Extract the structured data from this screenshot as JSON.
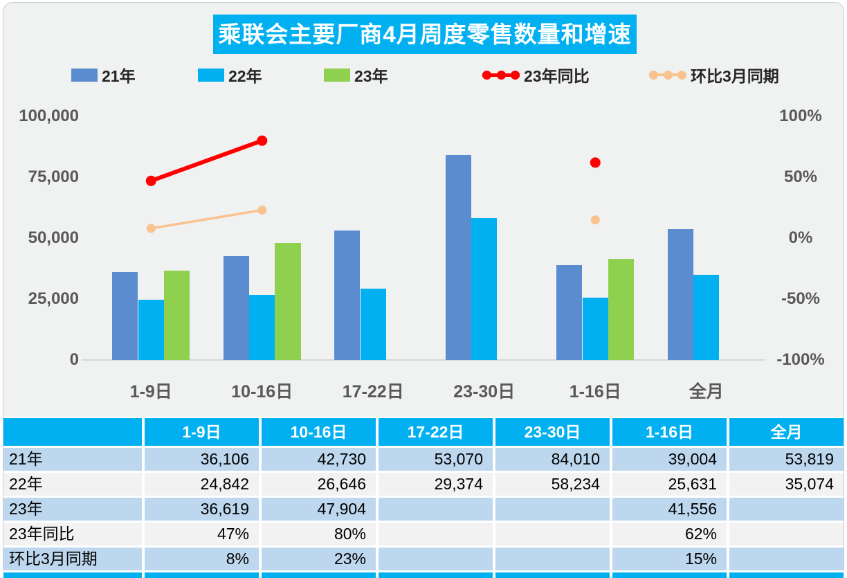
{
  "title": "乘联会主要厂商4月周度零售数量和增速",
  "colors": {
    "page_bg": "#F0F1F1",
    "card_border": "#CACDD1",
    "accent_cyan": "#00B0F0",
    "bar_blue": "#5B8CD0",
    "bar_cyan": "#00B0F0",
    "bar_green": "#8FD14F",
    "line_red": "#FF0000",
    "line_peach": "#F9C28F",
    "row_blue": "#BDD7EE",
    "row_plain": "#F2F2F2",
    "axis_text": "#595959",
    "separator": "#FFFFFF"
  },
  "legend": [
    {
      "label": "21年",
      "type": "bar",
      "color_key": "bar_blue"
    },
    {
      "label": "22年",
      "type": "bar",
      "color_key": "bar_cyan"
    },
    {
      "label": "23年",
      "type": "bar",
      "color_key": "bar_green"
    },
    {
      "label": "23年同比",
      "type": "line",
      "color_key": "line_red"
    },
    {
      "label": "环比3月同期",
      "type": "line",
      "color_key": "line_peach"
    }
  ],
  "chart_data": {
    "type": "bar+line combo",
    "title": "乘联会主要厂商4月周度零售数量和增速",
    "categories": [
      "1-9日",
      "10-16日",
      "17-22日",
      "23-30日",
      "1-16日",
      "全月"
    ],
    "bar_series": [
      {
        "name": "21年",
        "color_key": "bar_blue",
        "values": [
          36106,
          42730,
          53070,
          84010,
          39004,
          53819
        ]
      },
      {
        "name": "22年",
        "color_key": "bar_cyan",
        "values": [
          24842,
          26646,
          29374,
          58234,
          25631,
          35074
        ]
      },
      {
        "name": "23年",
        "color_key": "bar_green",
        "values": [
          36619,
          47904,
          null,
          null,
          41556,
          null
        ]
      }
    ],
    "line_series": [
      {
        "name": "23年同比",
        "color_key": "line_red",
        "axis": "right",
        "values_pct": [
          47,
          80,
          null,
          null,
          62,
          null
        ],
        "stroke": 6,
        "dot_r": 7.5
      },
      {
        "name": "环比3月同期",
        "color_key": "line_peach",
        "axis": "right",
        "values_pct": [
          8,
          23,
          null,
          null,
          15,
          null
        ],
        "stroke": 3.5,
        "dot_r": 6.5
      }
    ],
    "left_axis": {
      "min": 0,
      "max": 100000,
      "ticks": [
        "100,000",
        "75,000",
        "50,000",
        "25,000",
        "0"
      ]
    },
    "right_axis": {
      "min": -100,
      "max": 100,
      "ticks": [
        "100%",
        "50%",
        "0%",
        "-50%",
        "-100%"
      ]
    },
    "grid": false,
    "legend_position": "top"
  },
  "table": {
    "header": [
      "",
      "1-9日",
      "10-16日",
      "17-22日",
      "23-30日",
      "1-16日",
      "全月"
    ],
    "rows": [
      {
        "label": "21年",
        "cells": [
          "36,106",
          "42,730",
          "53,070",
          "84,010",
          "39,004",
          "53,819"
        ],
        "shaded": true
      },
      {
        "label": "22年",
        "cells": [
          "24,842",
          "26,646",
          "29,374",
          "58,234",
          "25,631",
          "35,074"
        ],
        "shaded": false
      },
      {
        "label": "23年",
        "cells": [
          "36,619",
          "47,904",
          "",
          "",
          "41,556",
          ""
        ],
        "shaded": true
      },
      {
        "label": "23年同比",
        "cells": [
          "47%",
          "80%",
          "",
          "",
          "62%",
          ""
        ],
        "shaded": false
      },
      {
        "label": "环比3月同期",
        "cells": [
          "8%",
          "23%",
          "",
          "",
          "15%",
          ""
        ],
        "shaded": true
      }
    ]
  }
}
